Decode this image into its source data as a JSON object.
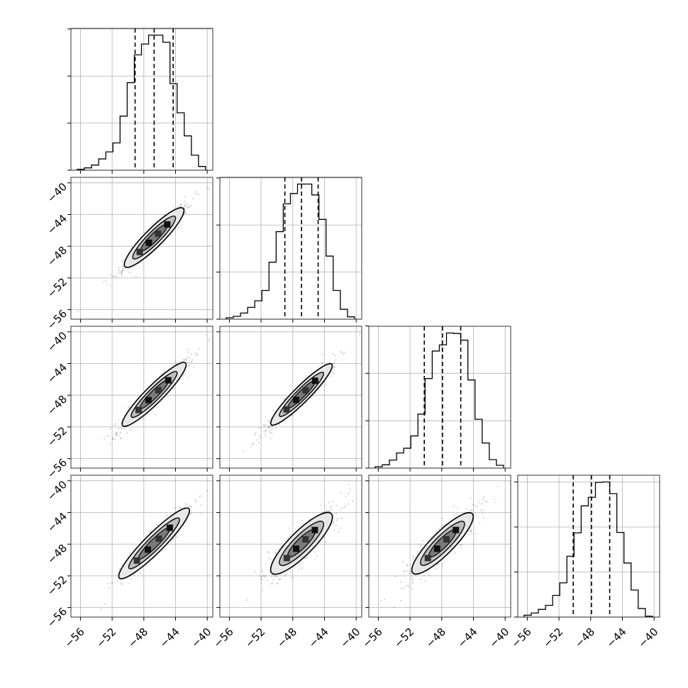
{
  "chart_data": {
    "type": "corner",
    "n_params": 4,
    "tick_labels": [
      "−56",
      "−52",
      "−48",
      "−44",
      "−40"
    ],
    "tick_values": [
      -56,
      -52,
      -48,
      -44,
      -40
    ],
    "axis_range": [
      -57.2,
      -39.3
    ],
    "grid": true,
    "colors": {
      "line": "#000000",
      "grid": "#b0b0b0",
      "scatter": "#555555"
    },
    "histograms": [
      {
        "quantiles": [
          -49.1,
          -46.7,
          -44.3
        ],
        "bin_edges": [
          -56.4,
          -55.5,
          -54.6,
          -53.7,
          -52.8,
          -51.9,
          -51.0,
          -50.1,
          -49.2,
          -48.3,
          -47.4,
          -46.5,
          -45.6,
          -44.7,
          -43.8,
          -42.9,
          -42.0,
          -41.1,
          -40.2
        ],
        "counts": [
          0.2,
          0.5,
          1.1,
          2.4,
          3.9,
          5.8,
          11.5,
          18.6,
          24.5,
          26.8,
          28.7,
          28.7,
          27.2,
          18.4,
          12.2,
          7.3,
          3.2,
          0.8
        ]
      },
      {
        "quantiles": [
          -49.0,
          -46.9,
          -44.8
        ],
        "bin_edges": [
          -56.4,
          -55.5,
          -54.6,
          -53.7,
          -52.8,
          -51.9,
          -51.0,
          -50.1,
          -49.2,
          -48.3,
          -47.4,
          -46.5,
          -45.6,
          -44.7,
          -43.8,
          -42.9,
          -42.0,
          -41.1,
          -40.2
        ],
        "counts": [
          0.3,
          0.6,
          1.3,
          2.5,
          3.9,
          6.1,
          12.1,
          18.6,
          24.5,
          26.7,
          28.7,
          28.7,
          26.4,
          21.2,
          13.4,
          6.1,
          2.1,
          0.5
        ]
      },
      {
        "quantiles": [
          -50.2,
          -47.9,
          -45.6
        ],
        "bin_edges": [
          -56.4,
          -55.5,
          -54.6,
          -53.7,
          -52.8,
          -51.9,
          -51.0,
          -50.1,
          -49.2,
          -48.3,
          -47.4,
          -46.5,
          -45.6,
          -44.7,
          -43.8,
          -42.9,
          -42.0,
          -41.1,
          -40.2
        ],
        "counts": [
          0.3,
          0.7,
          1.7,
          3.2,
          4.2,
          6.8,
          11.4,
          18.9,
          24.7,
          26.0,
          28.5,
          28.4,
          27.0,
          18.6,
          10.3,
          5.3,
          1.8,
          0.6
        ]
      },
      {
        "quantiles": [
          -50.2,
          -47.9,
          -45.6
        ],
        "bin_edges": [
          -56.4,
          -55.5,
          -54.6,
          -53.7,
          -52.8,
          -51.9,
          -51.0,
          -50.1,
          -49.2,
          -48.3,
          -47.4,
          -46.5,
          -45.6,
          -44.7,
          -43.8,
          -42.9,
          -42.0,
          -41.1,
          -40.2
        ],
        "counts": [
          0.4,
          0.9,
          1.7,
          2.6,
          4.8,
          7.6,
          13.5,
          18.7,
          24.7,
          26.6,
          29.9,
          30.0,
          27.4,
          18.8,
          12.0,
          6.0,
          1.9,
          0.2
        ]
      }
    ],
    "scatter_pairs": [
      {
        "row": 1,
        "col": 0,
        "center": [
          -46.7,
          -46.9
        ],
        "slope": 1.0,
        "spread": 0.45,
        "contour_half_length": 5.2,
        "contour_half_width": 1.15
      },
      {
        "row": 2,
        "col": 0,
        "center": [
          -46.7,
          -47.9
        ],
        "slope": 1.0,
        "spread": 0.5,
        "contour_half_length": 5.6,
        "contour_half_width": 1.1
      },
      {
        "row": 2,
        "col": 1,
        "center": [
          -46.9,
          -47.9
        ],
        "slope": 1.0,
        "spread": 0.5,
        "contour_half_length": 5.4,
        "contour_half_width": 1.0
      },
      {
        "row": 3,
        "col": 0,
        "center": [
          -46.7,
          -47.9
        ],
        "slope": 1.0,
        "spread": 0.55,
        "contour_half_length": 6.2,
        "contour_half_width": 1.2
      },
      {
        "row": 3,
        "col": 1,
        "center": [
          -46.9,
          -47.9
        ],
        "slope": 1.0,
        "spread": 0.85,
        "contour_half_length": 5.3,
        "contour_half_width": 1.5
      },
      {
        "row": 3,
        "col": 2,
        "center": [
          -47.9,
          -47.9
        ],
        "slope": 1.0,
        "spread": 0.8,
        "contour_half_length": 5.3,
        "contour_half_width": 1.4
      }
    ]
  }
}
